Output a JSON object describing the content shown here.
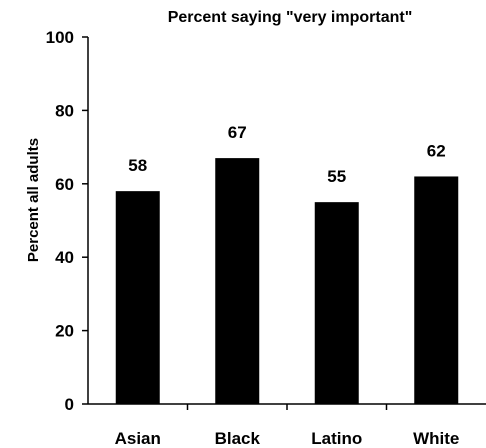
{
  "chart_data": {
    "type": "bar",
    "title": "Percent saying \"very important\"",
    "xlabel": "",
    "ylabel": "Percent all adults",
    "categories": [
      "Asian",
      "Black",
      "Latino",
      "White"
    ],
    "values": [
      58,
      67,
      55,
      62
    ],
    "data_labels": [
      "58",
      "67",
      "55",
      "62"
    ],
    "ylim": [
      0,
      100
    ],
    "yticks": [
      "0",
      "20",
      "40",
      "60",
      "80",
      "100"
    ],
    "grid": false,
    "legend": "none",
    "bar_color": "#000000"
  }
}
